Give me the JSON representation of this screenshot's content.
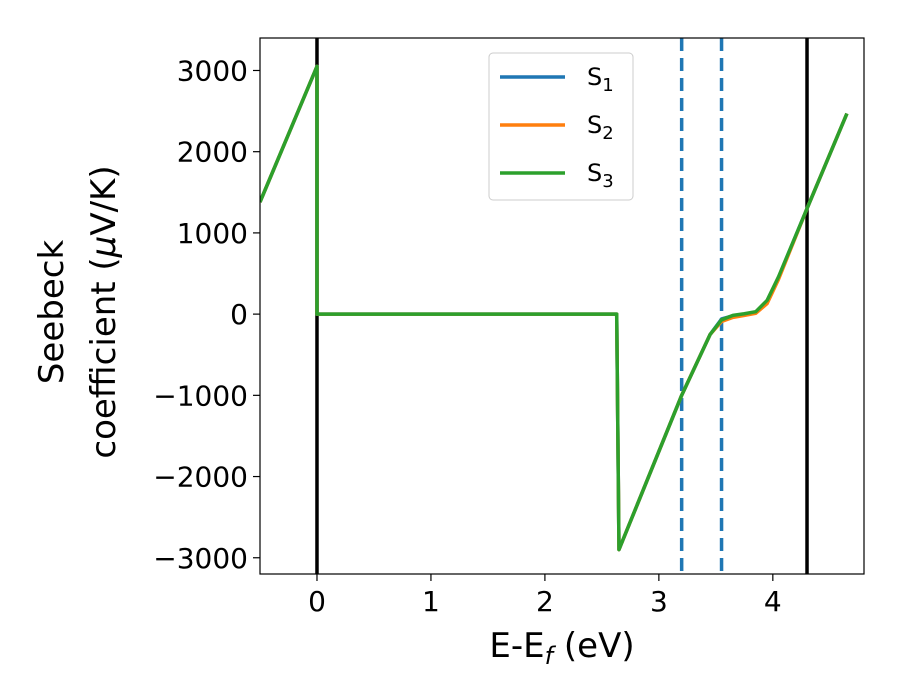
{
  "chart_data": {
    "type": "line",
    "xlabel": "E-E",
    "xlabel_sub": "f",
    "xlabel_unit": " (eV)",
    "ylabel_line1": "Seebeck",
    "ylabel_line2_pre": "coefficient  (",
    "ylabel_mu": "μ",
    "ylabel_line2_post": "V/K)",
    "xlim": [
      -0.5,
      4.8
    ],
    "ylim": [
      -3200,
      3400
    ],
    "x_ticks": [
      0,
      1,
      2,
      3,
      4
    ],
    "y_ticks": [
      -3000,
      -2000,
      -1000,
      0,
      1000,
      2000,
      3000
    ],
    "y_tick_labels": [
      "−3000",
      "−2000",
      "−1000",
      "0",
      "1000",
      "2000",
      "3000"
    ],
    "legend_position": "top-center",
    "grid": false,
    "vlines": [
      {
        "x": 0.0,
        "style": "solid",
        "color": "#000000"
      },
      {
        "x": 4.3,
        "style": "solid",
        "color": "#000000"
      },
      {
        "x": 3.2,
        "style": "dashed",
        "color": "#1f77b4"
      },
      {
        "x": 3.55,
        "style": "dashed",
        "color": "#1f77b4"
      }
    ],
    "series": [
      {
        "name": "S",
        "sub": "1",
        "color": "#1f77b4",
        "x": [
          -0.5,
          0.0,
          0.0,
          2.63,
          2.63,
          2.65,
          3.2,
          3.45,
          3.55,
          3.65,
          3.75,
          3.85,
          3.95,
          4.05,
          4.3,
          4.65
        ],
        "y": [
          1380,
          3050,
          0,
          0,
          0,
          -2900,
          -1000,
          -250,
          -60,
          -20,
          0,
          20,
          150,
          450,
          1300,
          2470
        ]
      },
      {
        "name": "S",
        "sub": "2",
        "color": "#ff7f0e",
        "x": [
          -0.5,
          0.0,
          0.0,
          2.63,
          2.63,
          2.65,
          3.2,
          3.45,
          3.55,
          3.65,
          3.75,
          3.85,
          3.95,
          4.05,
          4.3,
          4.65
        ],
        "y": [
          1380,
          3050,
          0,
          0,
          0,
          -2900,
          -1000,
          -250,
          -90,
          -40,
          -15,
          10,
          130,
          430,
          1300,
          2470
        ]
      },
      {
        "name": "S",
        "sub": "3",
        "color": "#2ca02c",
        "x": [
          -0.5,
          0.0,
          0.0,
          2.63,
          2.63,
          2.65,
          3.2,
          3.45,
          3.55,
          3.65,
          3.75,
          3.85,
          3.95,
          4.05,
          4.3,
          4.65
        ],
        "y": [
          1380,
          3050,
          0,
          0,
          0,
          -2900,
          -1000,
          -250,
          -70,
          -15,
          5,
          30,
          170,
          460,
          1300,
          2470
        ]
      }
    ]
  }
}
